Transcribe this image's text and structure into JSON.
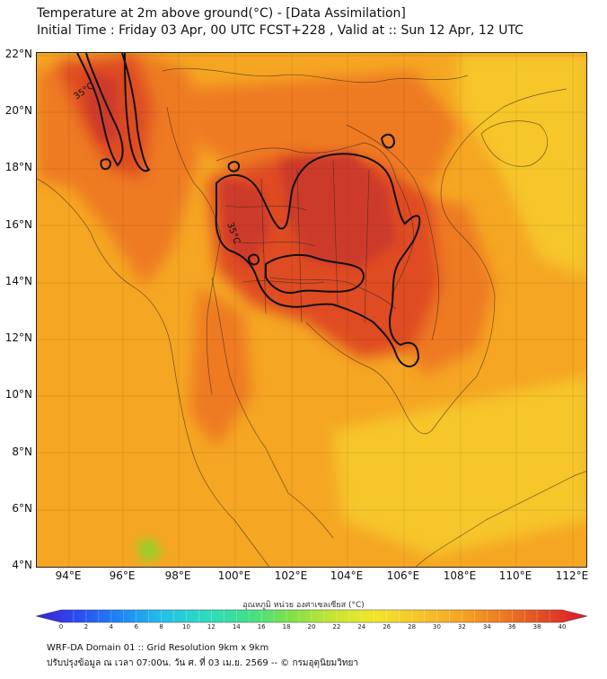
{
  "header": {
    "title_line1": "Temperature at 2m above ground(°C) - [Data Assimilation]",
    "title_line2": "Initial Time : Friday 03 Apr, 00 UTC FCST+228 , Valid at :: Sun 12 Apr, 12 UTC"
  },
  "map": {
    "lat_labels": [
      "22°N",
      "20°N",
      "18°N",
      "16°N",
      "14°N",
      "12°N",
      "10°N",
      "8°N",
      "6°N",
      "4°N"
    ],
    "lon_labels": [
      "94°E",
      "96°E",
      "98°E",
      "100°E",
      "102°E",
      "104°E",
      "106°E",
      "108°E",
      "110°E",
      "112°E"
    ],
    "contour_labels": [
      "35°C",
      "35°C"
    ],
    "colors": {
      "base": "#f5a623",
      "warm": "#ee7a22",
      "hot": "#df4c24",
      "hottest": "#cc3a2a",
      "sea_yellow": "#f6c62a",
      "cool_green": "#9ccd2b",
      "contour": "#111111",
      "border": "#3a2a1a"
    }
  },
  "colorbar": {
    "title": "อุณหภูมิ หน่วย องศาเซลเซียส (°C)",
    "ticks": [
      "0",
      "2",
      "4",
      "6",
      "8",
      "10",
      "12",
      "14",
      "16",
      "18",
      "20",
      "22",
      "24",
      "26",
      "28",
      "30",
      "32",
      "34",
      "36",
      "38",
      "40"
    ],
    "stops": [
      "#3b1fd6",
      "#2a4ef0",
      "#1f86f5",
      "#22c2e8",
      "#2ddcc0",
      "#3fe08a",
      "#7fe04a",
      "#c7e533",
      "#f2e62a",
      "#f6c62a",
      "#f5a623",
      "#ee7a22",
      "#e04a24",
      "#e0132a"
    ]
  },
  "footer": {
    "line1": "WRF-DA Domain 01 :: Grid Resolution 9km x 9km",
    "line2": "ปรับปรุงข้อมูล ณ เวลา 07:00น. วัน ศ. ที่ 03 เม.ย. 2569 -- © กรมอุตุนิยมวิทยา"
  }
}
